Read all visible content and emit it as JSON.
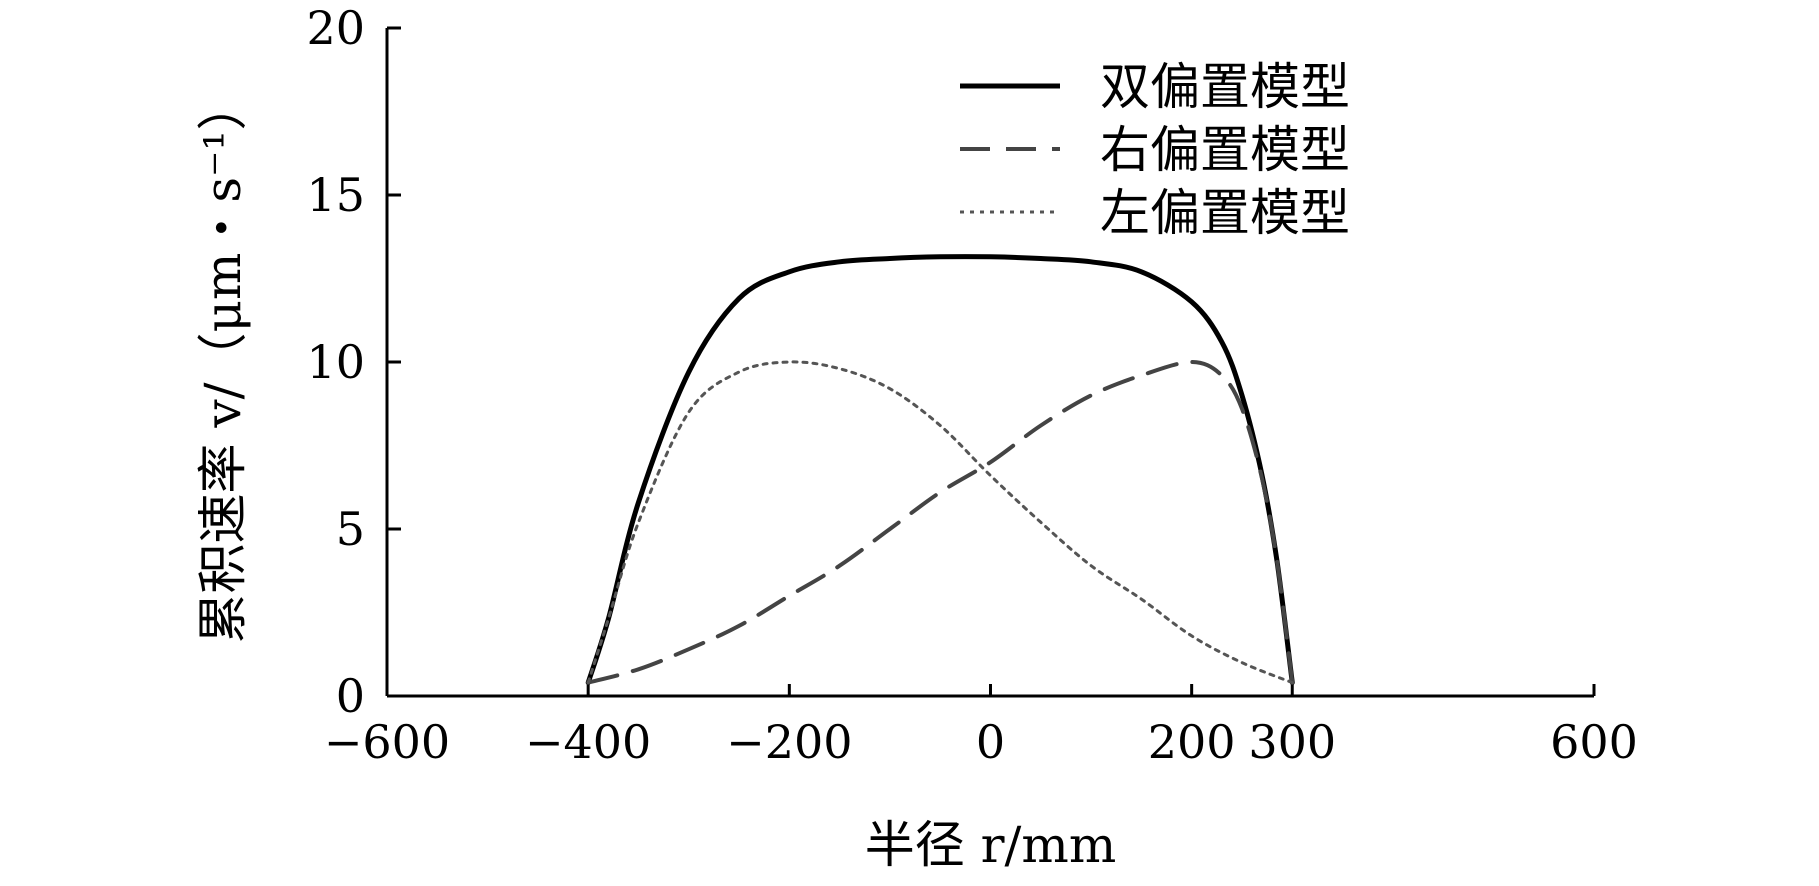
{
  "chart_data": {
    "type": "line",
    "xlabel": "半径 r/mm",
    "ylabel": "累积速率 v/（μm・s⁻¹）",
    "xlim": [
      -600,
      600
    ],
    "ylim": [
      0,
      20
    ],
    "xticks": [
      {
        "value": -600,
        "label": "−600"
      },
      {
        "value": -400,
        "label": "−400"
      },
      {
        "value": -200,
        "label": "−200"
      },
      {
        "value": 0,
        "label": "0"
      },
      {
        "value": 200,
        "label": "200"
      },
      {
        "value": 300,
        "label": "300"
      },
      {
        "value": 600,
        "label": "600"
      }
    ],
    "yticks": [
      {
        "value": 0,
        "label": "0"
      },
      {
        "value": 5,
        "label": "5"
      },
      {
        "value": 10,
        "label": "10"
      },
      {
        "value": 15,
        "label": "15"
      },
      {
        "value": 20,
        "label": "20"
      }
    ],
    "grid": false,
    "legend_position": "top-right",
    "series": [
      {
        "name": "双偏置模型",
        "style": "solid",
        "color": "#000000",
        "x": [
          -400,
          -380,
          -350,
          -300,
          -250,
          -200,
          -150,
          -100,
          -50,
          0,
          50,
          100,
          150,
          200,
          230,
          250,
          270,
          285,
          300
        ],
        "y": [
          0.4,
          2.3,
          5.8,
          9.7,
          11.9,
          12.7,
          13.0,
          13.1,
          13.15,
          13.15,
          13.1,
          13.0,
          12.7,
          11.8,
          10.6,
          9.0,
          6.6,
          4.0,
          0.4
        ]
      },
      {
        "name": "右偏置模型",
        "style": "dashed",
        "color": "#444444",
        "x": [
          -400,
          -350,
          -300,
          -250,
          -200,
          -150,
          -100,
          -50,
          0,
          50,
          100,
          150,
          200,
          230,
          250,
          270,
          285,
          300
        ],
        "y": [
          0.4,
          0.8,
          1.4,
          2.1,
          3.0,
          3.9,
          5.0,
          6.1,
          7.0,
          8.1,
          9.0,
          9.6,
          10.0,
          9.6,
          8.6,
          6.5,
          4.0,
          0.4
        ]
      },
      {
        "name": "左偏置模型",
        "style": "dotted",
        "color": "#555555",
        "x": [
          -400,
          -380,
          -350,
          -300,
          -250,
          -200,
          -150,
          -100,
          -50,
          0,
          50,
          100,
          150,
          200,
          250,
          300
        ],
        "y": [
          0.4,
          2.3,
          5.2,
          8.5,
          9.7,
          10.0,
          9.8,
          9.2,
          8.1,
          6.6,
          5.2,
          3.9,
          2.9,
          1.8,
          1.0,
          0.4
        ]
      }
    ]
  }
}
